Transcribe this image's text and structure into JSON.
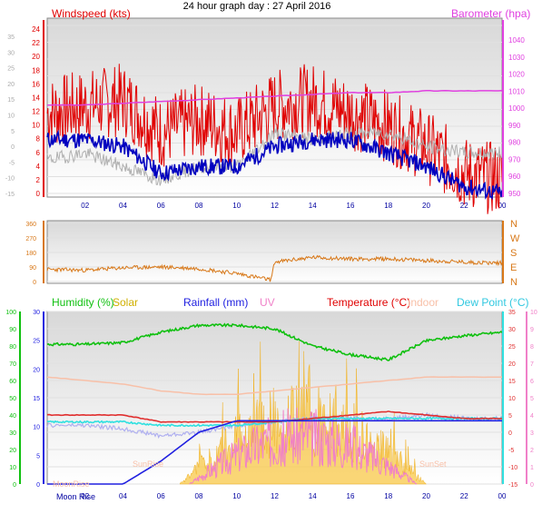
{
  "page": {
    "title": "24 hour graph day : 27 April 2016"
  },
  "top_panel": {
    "left_label": "Windspeed (kts)",
    "right_label": "Barometer (hpa)",
    "temp_ticks": [
      "35",
      "30",
      "25",
      "20",
      "15",
      "10",
      "5",
      "0",
      "-5",
      "-10",
      "-15"
    ],
    "wind_ticks": [
      "24",
      "22",
      "20",
      "18",
      "16",
      "14",
      "12",
      "10",
      "8",
      "6",
      "4",
      "2",
      "0"
    ],
    "baro_ticks": [
      "1040",
      "1030",
      "1020",
      "1010",
      "1000",
      "990",
      "980",
      "970",
      "960",
      "950"
    ],
    "x_ticks": [
      "02",
      "04",
      "06",
      "08",
      "10",
      "12",
      "14",
      "16",
      "18",
      "20",
      "22",
      "00"
    ]
  },
  "mid_panel": {
    "dir_ticks": [
      "360",
      "270",
      "180",
      "90",
      "0"
    ],
    "compass": [
      "N",
      "W",
      "S",
      "E",
      "N"
    ],
    "x_ticks": [
      "02",
      "04",
      "06",
      "08",
      "10",
      "12",
      "14",
      "16",
      "18",
      "20",
      "22",
      "00"
    ]
  },
  "bottom_panel": {
    "labels": {
      "humidity": "Humidity (%)",
      "solar": "Solar",
      "rainfall": "Rainfall (mm)",
      "uv": "UV",
      "temperature": "Temperature (°C)",
      "indoor": "Indoor",
      "dewpoint": "Dew Point (°C)"
    },
    "humidity_ticks": [
      "100",
      "90",
      "80",
      "70",
      "60",
      "50",
      "40",
      "30",
      "20",
      "10",
      "0"
    ],
    "rain_ticks": [
      "30",
      "25",
      "20",
      "15",
      "10",
      "5",
      "0"
    ],
    "temp_ticks": [
      "35",
      "30",
      "25",
      "20",
      "15",
      "10",
      "5",
      "0",
      "-5",
      "-10",
      "-15"
    ],
    "uv_ticks": [
      "10",
      "9",
      "8",
      "7",
      "6",
      "5",
      "4",
      "3",
      "2",
      "1",
      "0"
    ],
    "annotations": {
      "moonrise": "MoonRise",
      "sunrise": "SunRise",
      "sunset": "SunSet",
      "moonrise_x": "Moon Rise"
    },
    "x_ticks": [
      "02",
      "04",
      "06",
      "08",
      "10",
      "12",
      "14",
      "16",
      "18",
      "20",
      "22",
      "00"
    ]
  },
  "colors": {
    "wind": "#e00000",
    "wind_avg": "#0000c0",
    "barometer": "#e040e0",
    "temp_gray": "#b0b0b0",
    "direction": "#d87818",
    "humidity": "#10c010",
    "solar": "#f8c848",
    "rainfall": "#2020e0",
    "uv": "#f080c8",
    "temperature": "#e03030",
    "indoor": "#f8c0a8",
    "dewpoint": "#30e0e0",
    "lavender": "#b0b0f0"
  },
  "chart_data": [
    {
      "type": "line",
      "title": "24 hour graph day : 27 April 2016",
      "x_unit": "hour",
      "x": [
        0,
        2,
        4,
        6,
        8,
        10,
        12,
        14,
        16,
        18,
        20,
        22,
        24
      ],
      "series": [
        {
          "name": "Windspeed (kts)",
          "values": [
            12,
            13,
            14,
            9,
            11,
            9,
            13,
            14,
            12,
            10,
            7,
            3,
            2
          ]
        },
        {
          "name": "Barometer (hpa)",
          "values": [
            1000,
            1000,
            1001,
            1002,
            1003,
            1004,
            1005,
            1006,
            1007,
            1007,
            1008,
            1008,
            1008
          ]
        }
      ],
      "ylim_wind": [
        0,
        25
      ],
      "ylim_baro": [
        950,
        1045
      ]
    },
    {
      "type": "line",
      "x_unit": "hour",
      "x": [
        0,
        2,
        4,
        6,
        8,
        10,
        11.8,
        12,
        14,
        16,
        18,
        20,
        22,
        24
      ],
      "series": [
        {
          "values": [
            75,
            70,
            85,
            90,
            80,
            50,
            10,
            120,
            150,
            140,
            140,
            130,
            120,
            115
          ]
        }
      ],
      "ylim": [
        0,
        360
      ]
    },
    {
      "type": "line",
      "x_unit": "hour",
      "x": [
        0,
        2,
        4,
        6,
        8,
        10,
        12,
        14,
        16,
        18,
        20,
        22,
        24
      ],
      "series": [
        {
          "name": "Humidity (%)",
          "values": [
            81,
            81,
            82,
            88,
            92,
            92,
            90,
            80,
            75,
            72,
            83,
            86,
            88
          ]
        },
        {
          "name": "Temperature (°C)",
          "values": [
            5,
            5,
            5,
            3,
            3,
            3,
            3,
            4,
            5,
            6,
            5,
            4,
            4
          ]
        },
        {
          "name": "Dew Point (°C)",
          "values": [
            3,
            3,
            3,
            2,
            2,
            2,
            3,
            4,
            4,
            4,
            4,
            4,
            4
          ]
        },
        {
          "name": "Rainfall (mm)",
          "values": [
            0,
            0,
            0,
            4,
            9,
            11,
            11,
            11,
            11,
            11,
            11,
            11,
            11
          ]
        }
      ]
    }
  ]
}
